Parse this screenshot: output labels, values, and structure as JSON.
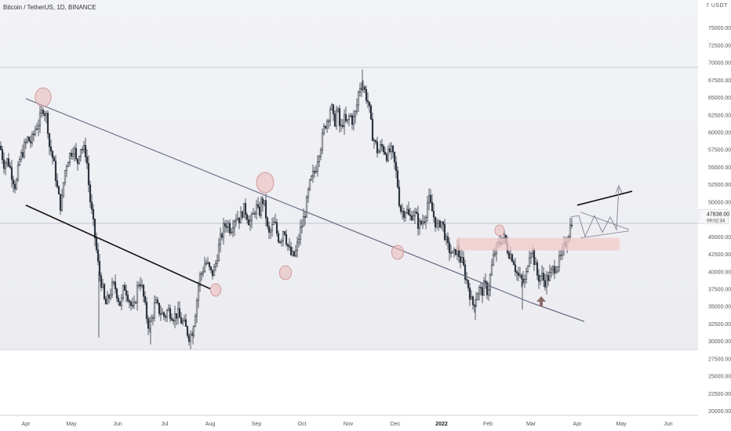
{
  "header": {
    "symbol": "Bitcoin / TetherUS, 1D, BINANCE"
  },
  "axis": {
    "unit_label": "7 USDT"
  },
  "price_label": {
    "value": "47838.00",
    "countdown": "09:02:34"
  },
  "colors": {
    "up": "#2f3640",
    "down": "#2f3640",
    "trendline_down": "#6b6f86",
    "trendline_up": "#111111",
    "highlight_circle": "#e9b6b6",
    "zone": "#f1c9c9",
    "arrow": "#8c6a6a",
    "projection": "#8a8a9a"
  },
  "chart_data": {
    "type": "candlestick",
    "ylim": [
      20000,
      77500
    ],
    "yticks": [
      "75000.00",
      "72500.00",
      "70000.00",
      "67500.00",
      "65000.00",
      "62500.00",
      "60000.00",
      "57500.00",
      "55000.00",
      "52500.00",
      "50000.00",
      "45000.00",
      "42500.00",
      "40000.00",
      "37500.00",
      "35000.00",
      "32500.00",
      "30000.00",
      "27500.00",
      "25000.00",
      "22500.00",
      "20000.00"
    ],
    "xticks": [
      "Apr",
      "May",
      "Jun",
      "Jul",
      "Aug",
      "Sep",
      "Oct",
      "Nov",
      "Dec",
      "2022",
      "Feb",
      "Mar",
      "Apr",
      "May",
      "Jun"
    ],
    "price_anchors": [
      [
        0,
        58000
      ],
      [
        5,
        55500
      ],
      [
        10,
        56000
      ],
      [
        15,
        54000
      ],
      [
        20,
        52000
      ],
      [
        25,
        56000
      ],
      [
        30,
        57500
      ],
      [
        35,
        59000
      ],
      [
        40,
        58500
      ],
      [
        45,
        60500
      ],
      [
        50,
        61500
      ],
      [
        55,
        63500
      ],
      [
        60,
        62000
      ],
      [
        63,
        58000
      ],
      [
        66,
        57000
      ],
      [
        70,
        54500
      ],
      [
        74,
        51000
      ],
      [
        78,
        49000
      ],
      [
        82,
        54000
      ],
      [
        86,
        56000
      ],
      [
        90,
        57000
      ],
      [
        94,
        58000
      ],
      [
        98,
        55000
      ],
      [
        102,
        58000
      ],
      [
        106,
        57500
      ],
      [
        110,
        57000
      ],
      [
        114,
        51000
      ],
      [
        118,
        47500
      ],
      [
        122,
        44000
      ],
      [
        126,
        40000
      ],
      [
        130,
        38000
      ],
      [
        134,
        35000
      ],
      [
        138,
        36000
      ],
      [
        142,
        37500
      ],
      [
        146,
        38000
      ],
      [
        150,
        36500
      ],
      [
        154,
        35000
      ],
      [
        158,
        38000
      ],
      [
        162,
        37000
      ],
      [
        166,
        35500
      ],
      [
        170,
        34000
      ],
      [
        174,
        37000
      ],
      [
        178,
        39000
      ],
      [
        182,
        37000
      ],
      [
        186,
        34000
      ],
      [
        190,
        32000
      ],
      [
        194,
        33500
      ],
      [
        198,
        35500
      ],
      [
        202,
        34500
      ],
      [
        206,
        34000
      ],
      [
        210,
        33500
      ],
      [
        214,
        34500
      ],
      [
        218,
        34000
      ],
      [
        222,
        33500
      ],
      [
        226,
        34000
      ],
      [
        230,
        33000
      ],
      [
        234,
        32500
      ],
      [
        238,
        31500
      ],
      [
        242,
        30500
      ],
      [
        246,
        32000
      ],
      [
        250,
        35000
      ],
      [
        254,
        39000
      ],
      [
        258,
        40000
      ],
      [
        262,
        41500
      ],
      [
        266,
        40500
      ],
      [
        270,
        39500
      ],
      [
        274,
        40500
      ],
      [
        278,
        43000
      ],
      [
        282,
        45000
      ],
      [
        286,
        46500
      ],
      [
        290,
        47000
      ],
      [
        294,
        46000
      ],
      [
        298,
        47500
      ],
      [
        302,
        48000
      ],
      [
        306,
        47500
      ],
      [
        310,
        49000
      ],
      [
        314,
        48500
      ],
      [
        318,
        47000
      ],
      [
        322,
        47500
      ],
      [
        326,
        49500
      ],
      [
        330,
        48000
      ],
      [
        334,
        50500
      ],
      [
        338,
        49000
      ],
      [
        342,
        45000
      ],
      [
        346,
        46000
      ],
      [
        350,
        47000
      ],
      [
        354,
        45000
      ],
      [
        358,
        44500
      ],
      [
        362,
        46500
      ],
      [
        366,
        44000
      ],
      [
        370,
        42500
      ],
      [
        374,
        42000
      ],
      [
        378,
        43000
      ],
      [
        382,
        45500
      ],
      [
        386,
        47000
      ],
      [
        390,
        49000
      ],
      [
        394,
        52000
      ],
      [
        398,
        53500
      ],
      [
        402,
        54500
      ],
      [
        406,
        57000
      ],
      [
        410,
        58500
      ],
      [
        414,
        61000
      ],
      [
        418,
        62000
      ],
      [
        422,
        64000
      ],
      [
        426,
        61000
      ],
      [
        430,
        63500
      ],
      [
        434,
        60000
      ],
      [
        438,
        62000
      ],
      [
        442,
        61000
      ],
      [
        446,
        62500
      ],
      [
        450,
        61500
      ],
      [
        454,
        63000
      ],
      [
        458,
        66500
      ],
      [
        462,
        67000
      ],
      [
        466,
        65500
      ],
      [
        470,
        64000
      ],
      [
        474,
        60000
      ],
      [
        478,
        58500
      ],
      [
        482,
        57000
      ],
      [
        486,
        58000
      ],
      [
        490,
        57500
      ],
      [
        494,
        56500
      ],
      [
        498,
        57500
      ],
      [
        502,
        56000
      ],
      [
        506,
        53500
      ],
      [
        510,
        49000
      ],
      [
        514,
        48500
      ],
      [
        518,
        49000
      ],
      [
        522,
        47500
      ],
      [
        526,
        48500
      ],
      [
        530,
        48000
      ],
      [
        534,
        46500
      ],
      [
        538,
        47000
      ],
      [
        542,
        48000
      ],
      [
        546,
        50500
      ],
      [
        550,
        49000
      ],
      [
        554,
        47500
      ],
      [
        558,
        46000
      ],
      [
        562,
        47500
      ],
      [
        566,
        46000
      ],
      [
        570,
        43500
      ],
      [
        574,
        43000
      ],
      [
        578,
        42000
      ],
      [
        582,
        43500
      ],
      [
        586,
        42000
      ],
      [
        590,
        41000
      ],
      [
        594,
        39000
      ],
      [
        598,
        37500
      ],
      [
        602,
        35000
      ],
      [
        606,
        36000
      ],
      [
        610,
        37500
      ],
      [
        614,
        37000
      ],
      [
        618,
        38000
      ],
      [
        622,
        37000
      ],
      [
        626,
        40000
      ],
      [
        630,
        42500
      ],
      [
        634,
        43500
      ],
      [
        638,
        44500
      ],
      [
        642,
        45000
      ],
      [
        646,
        43500
      ],
      [
        650,
        42500
      ],
      [
        654,
        42000
      ],
      [
        658,
        40000
      ],
      [
        662,
        39000
      ],
      [
        666,
        38500
      ],
      [
        670,
        38500
      ],
      [
        674,
        42500
      ],
      [
        678,
        43500
      ],
      [
        682,
        41000
      ],
      [
        686,
        39000
      ],
      [
        690,
        39500
      ],
      [
        694,
        38500
      ],
      [
        698,
        39000
      ],
      [
        702,
        39500
      ],
      [
        706,
        40500
      ],
      [
        710,
        41000
      ],
      [
        714,
        41500
      ],
      [
        718,
        43000
      ],
      [
        722,
        44500
      ],
      [
        726,
        46000
      ],
      [
        730,
        47838
      ]
    ],
    "trendlines": [
      {
        "from": [
          "Apr",
          64800
        ],
        "to": [
          "Mar",
          35500
        ]
      },
      {
        "from": [
          "Aug",
          37500
        ],
        "to": [
          "Apr",
          49500
        ]
      }
    ],
    "zone": {
      "low": 43000,
      "high": 44800
    },
    "last_price": 47838.0
  }
}
